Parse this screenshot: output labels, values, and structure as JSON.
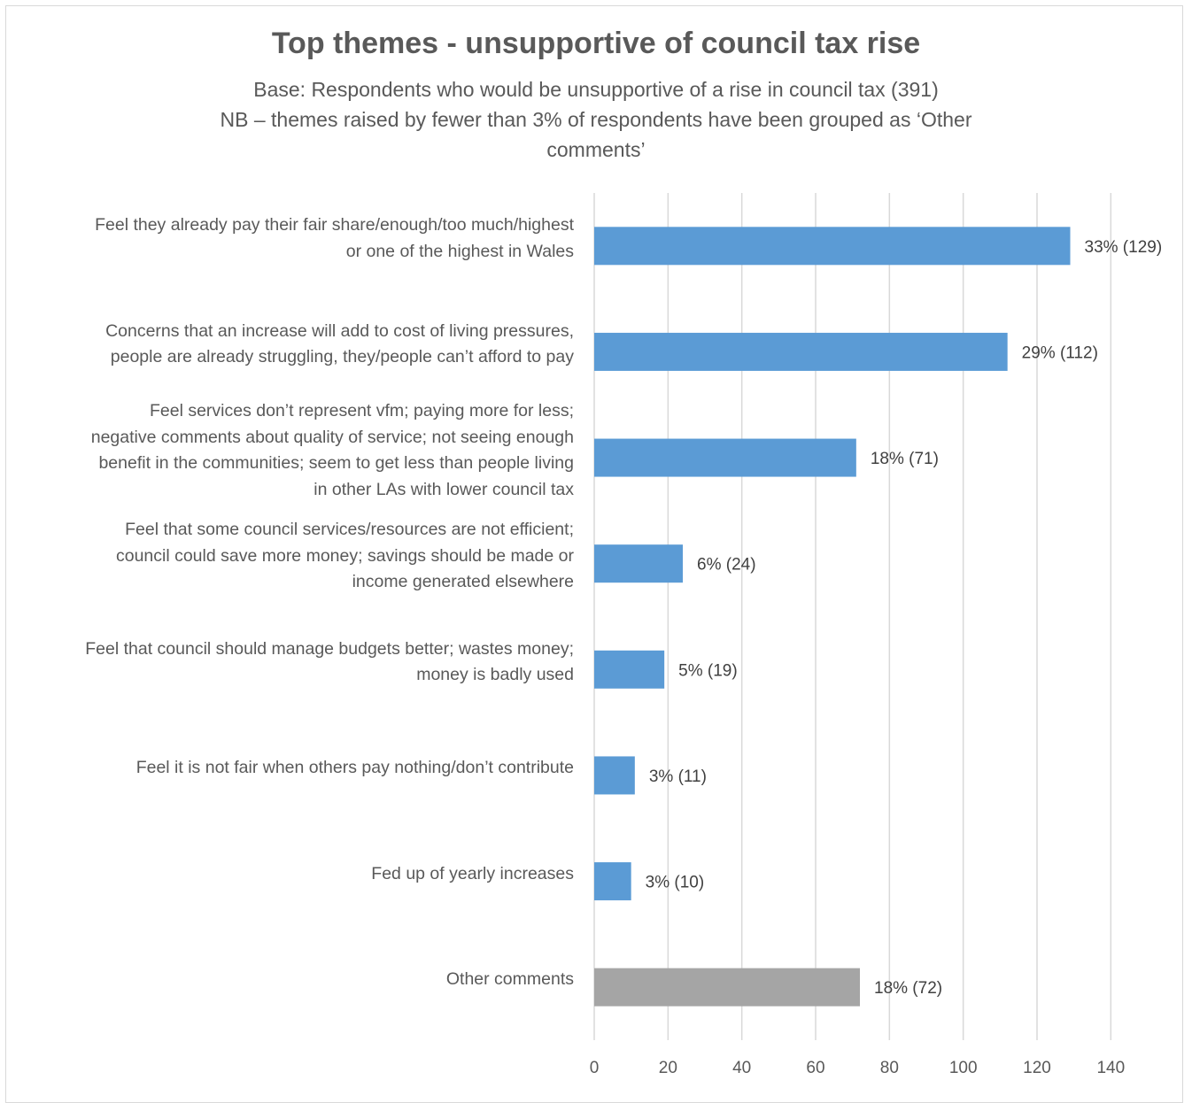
{
  "chart_data": {
    "type": "bar",
    "orientation": "horizontal",
    "title": "Top themes - unsupportive of council tax rise",
    "subtitle_lines": [
      "Base: Respondents who would be unsupportive of a rise in council tax (391)",
      "NB – themes raised by fewer than 3% of respondents have been grouped as ‘Other",
      "comments’"
    ],
    "categories": [
      [
        "Feel they already pay their fair share/enough/too much/highest",
        "or one of the highest in Wales"
      ],
      [
        "Concerns that an increase will add to cost of living pressures,",
        "people are already struggling, they/people can’t afford to pay"
      ],
      [
        "Feel services don’t represent vfm; paying more for less;",
        "negative comments about quality of service; not seeing enough",
        "benefit in the communities; seem to get less than people living",
        "in other LAs with lower council tax"
      ],
      [
        "Feel that some council services/resources are not efficient;",
        "council could save more money; savings should be made or",
        "income generated elsewhere"
      ],
      [
        "Feel that council should manage budgets better; wastes money;",
        "money is badly used"
      ],
      [
        "Feel it is not fair when others pay nothing/don’t contribute"
      ],
      [
        "Fed up of yearly increases"
      ],
      [
        "Other comments"
      ]
    ],
    "values": [
      129,
      112,
      71,
      24,
      19,
      11,
      10,
      72
    ],
    "data_labels": [
      "33% (129)",
      "29% (112)",
      "18% (71)",
      "6% (24)",
      "5% (19)",
      "3% (11)",
      "3% (10)",
      "18% (72)"
    ],
    "bar_colors": [
      "#5b9bd5",
      "#5b9bd5",
      "#5b9bd5",
      "#5b9bd5",
      "#5b9bd5",
      "#5b9bd5",
      "#5b9bd5",
      "#a5a5a5"
    ],
    "x_ticks": [
      0,
      20,
      40,
      60,
      80,
      100,
      120,
      140
    ],
    "xlim": [
      0,
      140
    ],
    "grid": "vertical",
    "xlabel": "",
    "ylabel": ""
  }
}
